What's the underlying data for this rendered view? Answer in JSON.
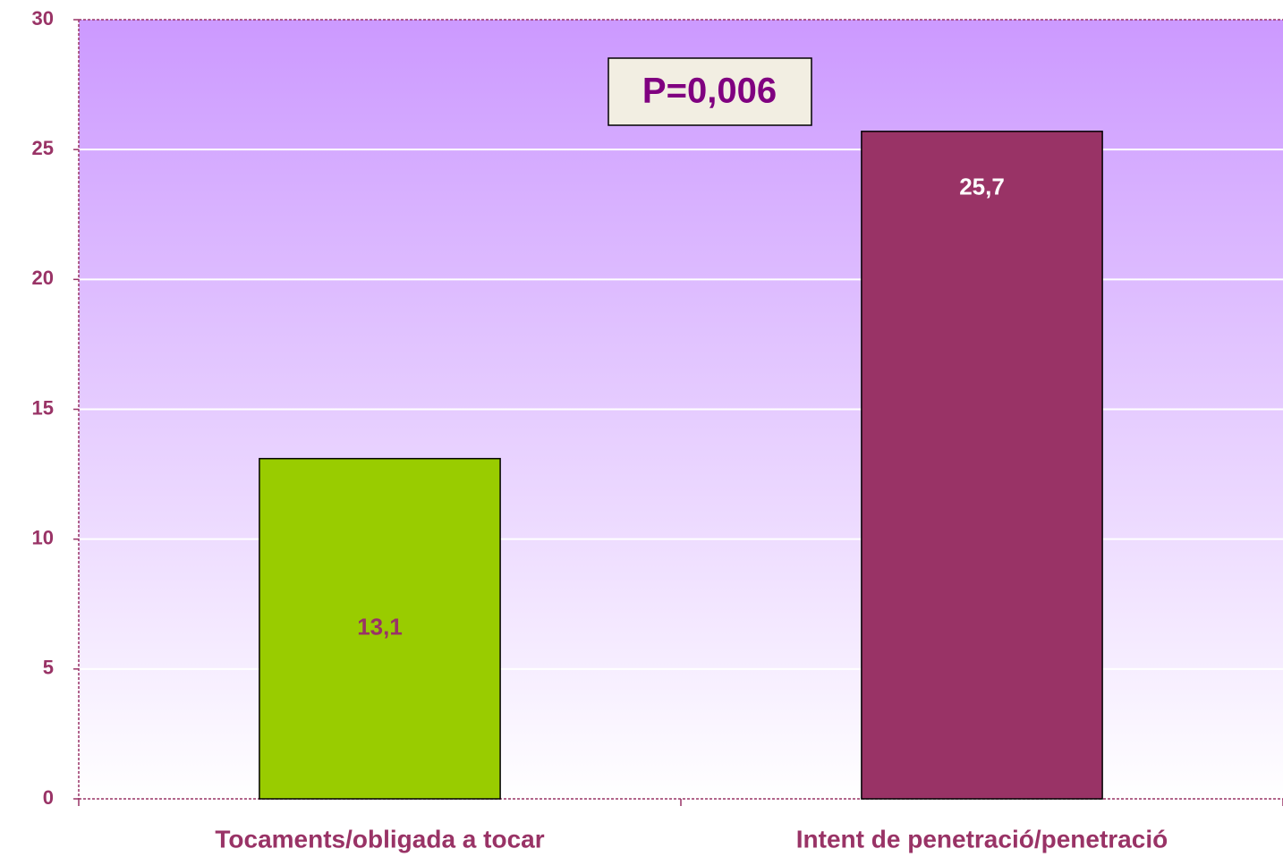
{
  "chart_data": {
    "type": "bar",
    "categories": [
      "Tocaments/obligada a tocar",
      "Intent de penetració/penetració"
    ],
    "values": [
      13.1,
      25.7
    ],
    "value_labels": [
      "13,1",
      "25,7"
    ],
    "colors": [
      "#99cc00",
      "#993366"
    ],
    "value_label_colors": [
      "#993366",
      "#ffffff"
    ],
    "annotation": "P=0,006",
    "ylim": [
      0,
      30
    ],
    "yticks": [
      0,
      5,
      10,
      15,
      20,
      25,
      30
    ],
    "grid": true
  }
}
